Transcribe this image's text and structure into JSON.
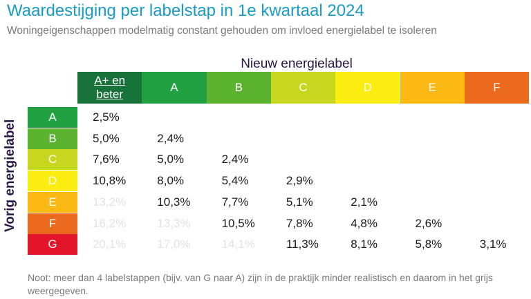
{
  "chart_data": {
    "type": "table",
    "title": "Waardestijging per labelstap in 1e kwartaal 2024",
    "subtitle": "Woningeigenschappen modelmatig constant gehouden om invloed energielabel te isoleren",
    "col_axis_title": "Nieuw energielabel",
    "row_axis_title": "Vorig energielabel",
    "columns": [
      {
        "label": "A+ en beter",
        "color": "#17733a",
        "text_color": "#ffffff"
      },
      {
        "label": "A",
        "color": "#22a142",
        "text_color": "#ffffff"
      },
      {
        "label": "B",
        "color": "#5cb330",
        "text_color": "#ffffff"
      },
      {
        "label": "C",
        "color": "#c7d61f",
        "text_color": "#ffffff"
      },
      {
        "label": "D",
        "color": "#fbed0f",
        "text_color": "#ffffff"
      },
      {
        "label": "E",
        "color": "#fcb813",
        "text_color": "#ffffff"
      },
      {
        "label": "F",
        "color": "#ec6a1d",
        "text_color": "#ffffff"
      }
    ],
    "rows": [
      {
        "label": "A",
        "color": "#22a142",
        "text_color": "#ffffff",
        "values": [
          "2,5%"
        ]
      },
      {
        "label": "B",
        "color": "#5cb330",
        "text_color": "#ffffff",
        "values": [
          "5,0%",
          "2,4%"
        ]
      },
      {
        "label": "C",
        "color": "#c7d61f",
        "text_color": "#ffffff",
        "values": [
          "7,6%",
          "5,0%",
          "2,4%"
        ]
      },
      {
        "label": "D",
        "color": "#fbed0f",
        "text_color": "#ffffff",
        "values": [
          "10,8%",
          "8,0%",
          "5,4%",
          "2,9%"
        ]
      },
      {
        "label": "E",
        "color": "#fcb813",
        "text_color": "#ffffff",
        "values": [
          "13,2%",
          "10,3%",
          "7,7%",
          "5,1%",
          "2,1%"
        ]
      },
      {
        "label": "F",
        "color": "#ec6a1d",
        "text_color": "#ffffff",
        "values": [
          "16,2%",
          "13,3%",
          "10,5%",
          "7,8%",
          "4,8%",
          "2,6%"
        ]
      },
      {
        "label": "G",
        "color": "#e2152b",
        "text_color": "#ffffff",
        "values": [
          "20,1%",
          "17,0%",
          "14,1%",
          "11,3%",
          "8,1%",
          "5,8%",
          "3,1%"
        ]
      }
    ],
    "greyed_out_rule": "meer dan 4 labelstappen",
    "greyed_color": "#e2e2e2",
    "note": "Noot: meer dan 4 labelstappen (bijv. van G naar A) zijn  in de praktijk minder realistisch en daarom in het  grijs weergegeven."
  }
}
